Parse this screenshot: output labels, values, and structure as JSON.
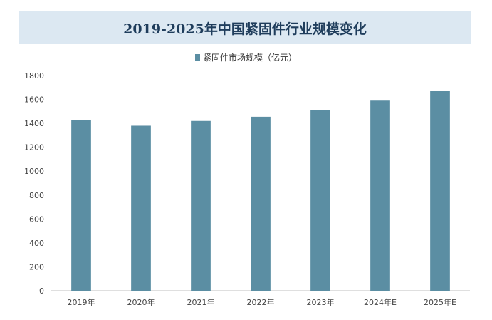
{
  "chart_data": {
    "type": "bar",
    "title": "2019-2025年中国紧固件行业规模变化",
    "categories": [
      "2019年",
      "2020年",
      "2021年",
      "2022年",
      "2023年",
      "2024年E",
      "2025年E"
    ],
    "series": [
      {
        "name": "紧固件市场规模（亿元）",
        "values": [
          1430,
          1380,
          1420,
          1455,
          1510,
          1590,
          1670
        ]
      }
    ],
    "xlabel": "",
    "ylabel": "",
    "ylim": [
      0,
      1800
    ],
    "yticks": [
      "0",
      "200",
      "400",
      "600",
      "800",
      "1000",
      "1200",
      "1400",
      "1600",
      "1800"
    ],
    "grid": false,
    "legend_position": "top",
    "bar_color": "#5b8ea3"
  }
}
